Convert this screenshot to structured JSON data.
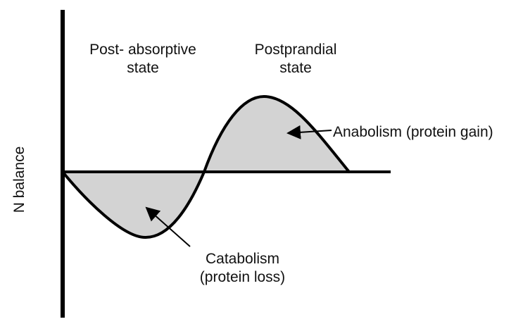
{
  "y_axis_label": "N balance",
  "post_absorptive_label": [
    "Post- absorptive",
    "state"
  ],
  "postprandial_label": [
    "Postprandial",
    "state"
  ],
  "anabolism_label": "Anabolism (protein gain)",
  "catabolism_label": [
    "Catabolism",
    "(protein loss)"
  ],
  "colors": {
    "line": "#000000",
    "fill": "#d3d3d3",
    "text": "#111111"
  }
}
